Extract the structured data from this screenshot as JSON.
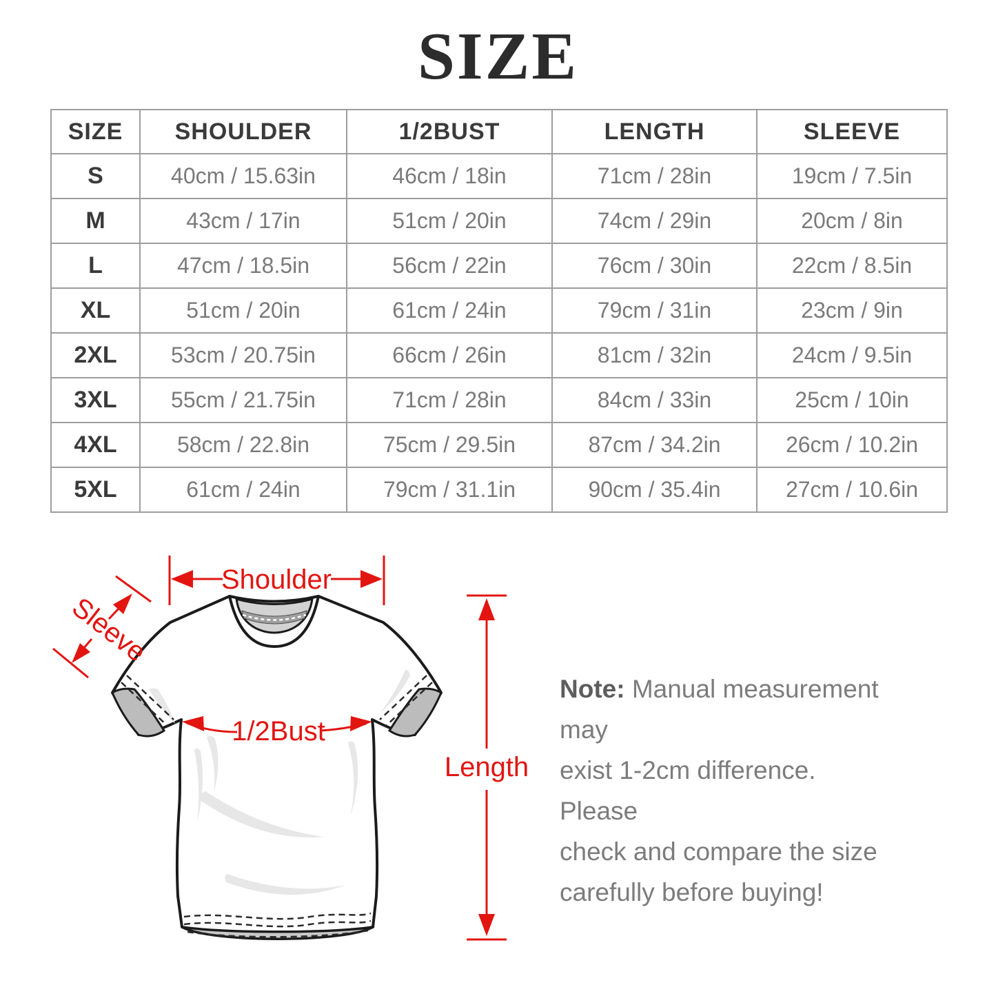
{
  "title": "SIZE",
  "table": {
    "headers": [
      "SIZE",
      "SHOULDER",
      "1/2BUST",
      "LENGTH",
      "SLEEVE"
    ],
    "rows": [
      {
        "size": "S",
        "shoulder": "40cm / 15.63in",
        "bust": "46cm / 18in",
        "length": "71cm / 28in",
        "sleeve": "19cm / 7.5in"
      },
      {
        "size": "M",
        "shoulder": "43cm / 17in",
        "bust": "51cm / 20in",
        "length": "74cm / 29in",
        "sleeve": "20cm / 8in"
      },
      {
        "size": "L",
        "shoulder": "47cm / 18.5in",
        "bust": "56cm / 22in",
        "length": "76cm / 30in",
        "sleeve": "22cm / 8.5in"
      },
      {
        "size": "XL",
        "shoulder": "51cm / 20in",
        "bust": "61cm / 24in",
        "length": "79cm / 31in",
        "sleeve": "23cm / 9in"
      },
      {
        "size": "2XL",
        "shoulder": "53cm / 20.75in",
        "bust": "66cm / 26in",
        "length": "81cm / 32in",
        "sleeve": "24cm / 9.5in"
      },
      {
        "size": "3XL",
        "shoulder": "55cm / 21.75in",
        "bust": "71cm / 28in",
        "length": "84cm / 33in",
        "sleeve": "25cm / 10in"
      },
      {
        "size": "4XL",
        "shoulder": "58cm / 22.8in",
        "bust": "75cm / 29.5in",
        "length": "87cm / 34.2in",
        "sleeve": "26cm / 10.2in"
      },
      {
        "size": "5XL",
        "shoulder": "61cm / 24in",
        "bust": "79cm / 31.1in",
        "length": "90cm / 35.4in",
        "sleeve": "27cm / 10.6in"
      }
    ]
  },
  "diagram": {
    "annotation_color": "#e21511",
    "labels": {
      "shoulder": "Shoulder",
      "sleeve": "Sleeve",
      "bust": "1/2Bust",
      "length": "Length"
    }
  },
  "note": {
    "label": "Note:",
    "text": " Manual measurement may\nexist 1-2cm difference. Please\ncheck and compare the size\ncarefully before buying!"
  }
}
